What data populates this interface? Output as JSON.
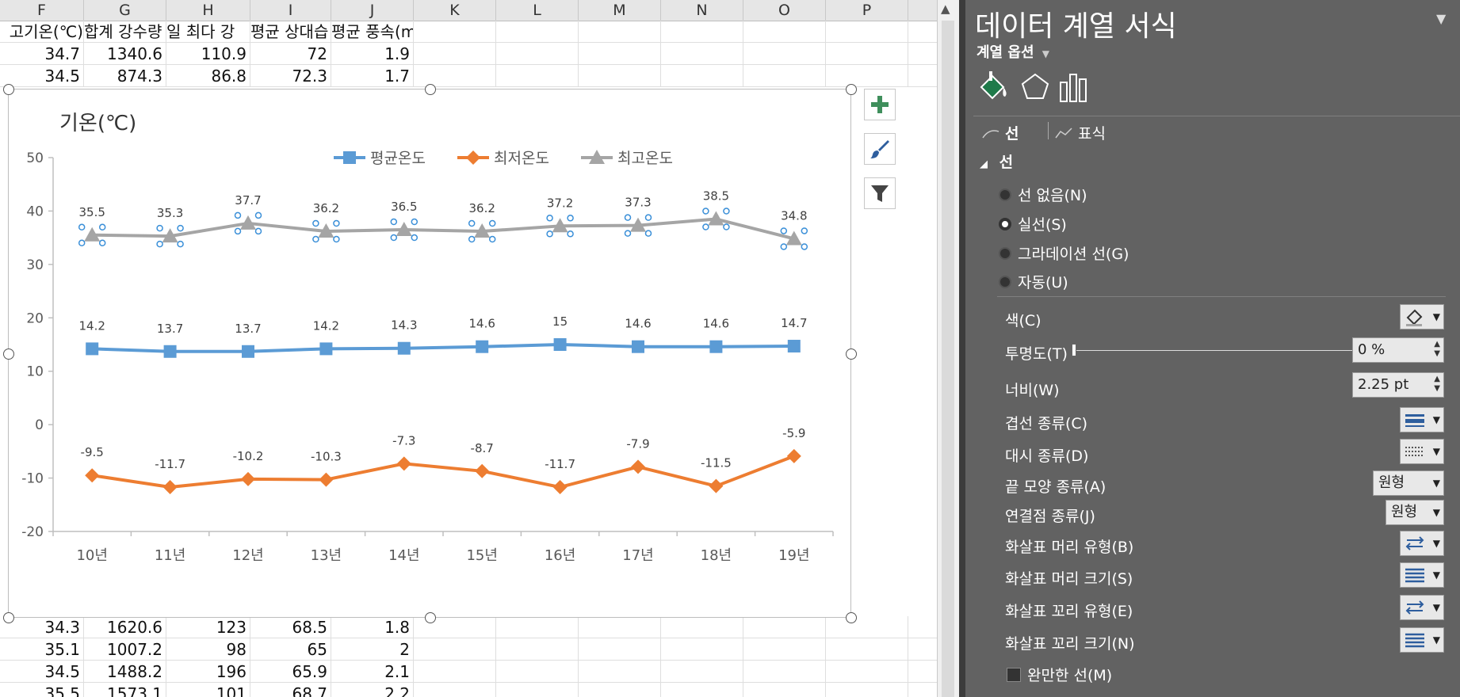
{
  "sheet": {
    "columns": [
      "F",
      "G",
      "H",
      "I",
      "J",
      "K",
      "L",
      "M",
      "N",
      "O",
      "P"
    ],
    "header_row": [
      "고기온(℃)",
      "합계 강수량",
      "일 최다 강",
      "평균 상대습",
      "평균 풍속(m/s)"
    ],
    "rows_top": [
      [
        "34.7",
        "1340.6",
        "110.9",
        "72",
        "1.9"
      ],
      [
        "34.5",
        "874.3",
        "86.8",
        "72.3",
        "1.7"
      ]
    ],
    "rows_bottom": [
      [
        "34.3",
        "1620.6",
        "123",
        "68.5",
        "1.8"
      ],
      [
        "35.1",
        "1007.2",
        "98",
        "65",
        "2"
      ],
      [
        "34.5",
        "1488.2",
        "196",
        "65.9",
        "2.1"
      ],
      [
        "35.5",
        "1573.1",
        "101",
        "68.7",
        "2.2"
      ]
    ]
  },
  "chart_data": {
    "type": "line",
    "title": "기온(℃)",
    "categories": [
      "10년",
      "11년",
      "12년",
      "13년",
      "14년",
      "15년",
      "16년",
      "17년",
      "18년",
      "19년"
    ],
    "series": [
      {
        "name": "평균온도",
        "color": "#5b9bd5",
        "marker": "square",
        "values": [
          14.2,
          13.7,
          13.7,
          14.2,
          14.3,
          14.6,
          15,
          14.6,
          14.6,
          14.7
        ],
        "labels": [
          "14.2",
          "13.7",
          "13.7",
          "14.2",
          "14.3",
          "14.6",
          "15",
          "14.6",
          "14.6",
          "14.7"
        ]
      },
      {
        "name": "최저온도",
        "color": "#ed7d31",
        "marker": "diamond",
        "values": [
          -9.5,
          -11.7,
          -10.2,
          -10.3,
          -7.3,
          -8.7,
          -11.7,
          -7.9,
          -11.5,
          -5.9
        ],
        "labels": [
          "-9.5",
          "-11.7",
          "-10.2",
          "-10.3",
          "-7.3",
          "-8.7",
          "-11.7",
          "-7.9",
          "-11.5",
          "-5.9"
        ]
      },
      {
        "name": "최고온도",
        "color": "#a5a5a5",
        "marker": "triangle",
        "selected": true,
        "values": [
          35.5,
          35.3,
          37.7,
          36.2,
          36.5,
          36.2,
          37.2,
          37.3,
          38.5,
          34.8
        ],
        "labels": [
          "35.5",
          "35.3",
          "37.7",
          "36.2",
          "36.5",
          "36.2",
          "37.2",
          "37.3",
          "38.5",
          "34.8"
        ]
      }
    ],
    "ylim": [
      -20,
      50
    ],
    "yticks": [
      "50",
      "40",
      "30",
      "20",
      "10",
      "0",
      "-10",
      "-20"
    ],
    "legend": "top",
    "grid": false
  },
  "chart_buttons": {
    "add": "chart-elements-plus-icon",
    "style": "chart-styles-brush-icon",
    "filter": "chart-filter-icon"
  },
  "pane": {
    "title": "데이터 계열 서식",
    "series_options": "계열 옵션",
    "tabs": {
      "line": "선",
      "marker": "표식"
    },
    "section_line": "선",
    "radios": [
      {
        "label": "선 없음(N)",
        "selected": false
      },
      {
        "label": "실선(S)",
        "selected": true
      },
      {
        "label": "그라데이션 선(G)",
        "selected": false
      },
      {
        "label": "자동(U)",
        "selected": false
      }
    ],
    "color_label": "색(C)",
    "transparency_label": "투명도(T)",
    "transparency_value": "0 %",
    "width_label": "너비(W)",
    "width_value": "2.25 pt",
    "compound_label": "겹선 종류(C)",
    "dash_label": "대시 종류(D)",
    "cap_label": "끝 모양 종류(A)",
    "cap_value": "원형",
    "join_label": "연결점 종류(J)",
    "join_value": "원형",
    "arrow_head_type": "화살표 머리 유형(B)",
    "arrow_head_size": "화살표 머리 크기(S)",
    "arrow_tail_type": "화살표 꼬리 유형(E)",
    "arrow_tail_size": "화살표 꼬리 크기(N)",
    "smooth_label": "완만한 선(M)"
  }
}
